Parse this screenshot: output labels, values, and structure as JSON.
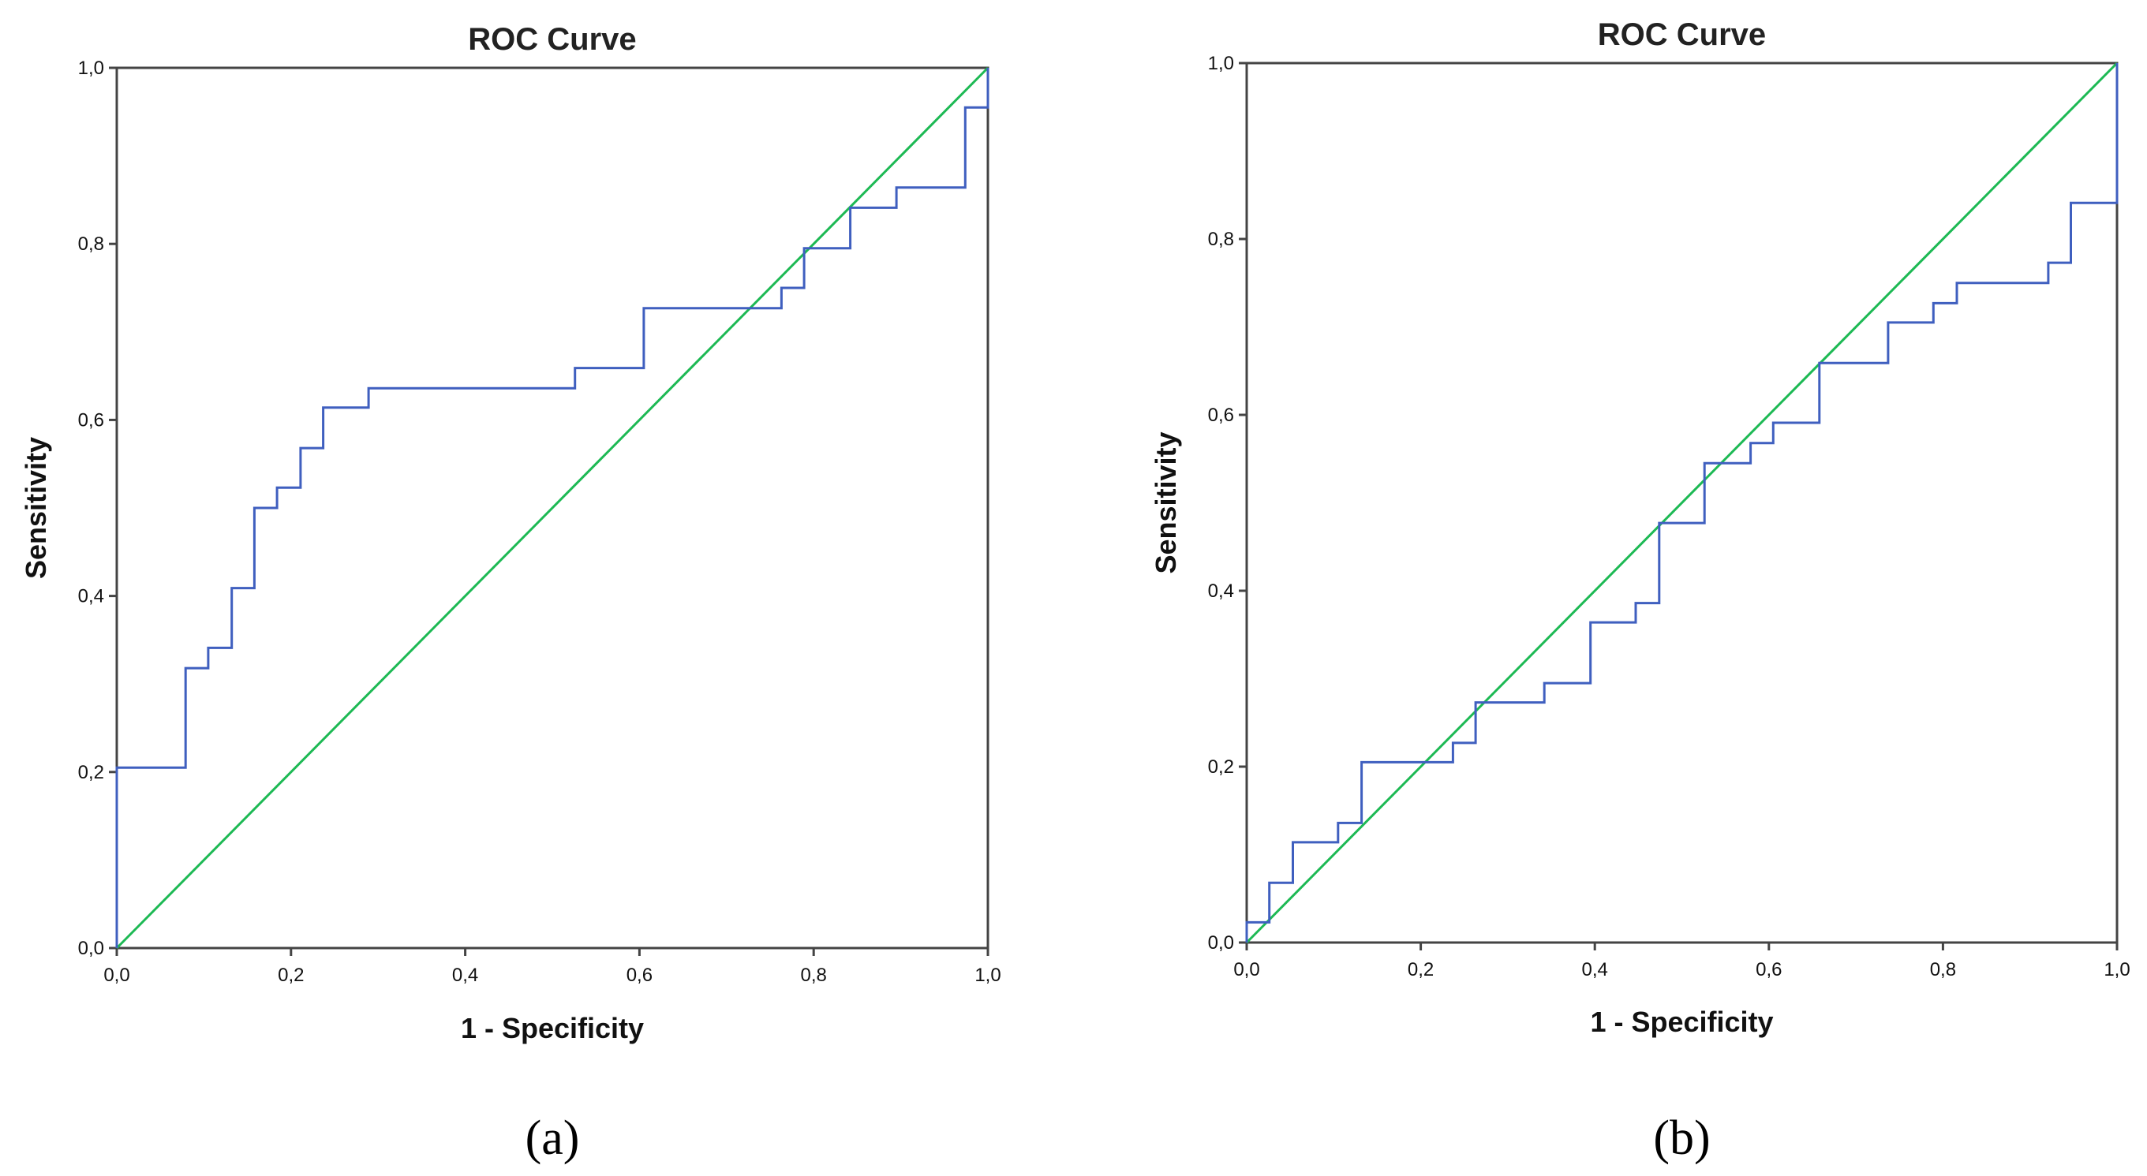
{
  "chart_data": [
    {
      "type": "line",
      "panel_label": "(a)",
      "title": "ROC Curve",
      "xlabel": "1 - Specificity",
      "ylabel": "Sensitivity",
      "xlim": [
        0,
        1
      ],
      "ylim": [
        0,
        1
      ],
      "xticks": [
        "0,0",
        "0,2",
        "0,4",
        "0,6",
        "0,8",
        "1,0"
      ],
      "yticks": [
        "0,0",
        "0,2",
        "0,4",
        "0,6",
        "0,8",
        "1,0"
      ],
      "grid": false,
      "colors": {
        "roc": "#3f5fbf",
        "reference": "#1db954"
      },
      "series": [
        {
          "role": "roc",
          "step": true,
          "x": [
            0.0,
            0.0,
            0.079,
            0.079,
            0.105,
            0.105,
            0.132,
            0.132,
            0.158,
            0.158,
            0.184,
            0.184,
            0.211,
            0.211,
            0.237,
            0.237,
            0.289,
            0.289,
            0.526,
            0.526,
            0.605,
            0.605,
            0.763,
            0.763,
            0.789,
            0.789,
            0.842,
            0.842,
            0.895,
            0.895,
            0.974,
            0.974,
            1.0,
            1.0
          ],
          "y": [
            0.0,
            0.205,
            0.205,
            0.318,
            0.318,
            0.341,
            0.341,
            0.409,
            0.409,
            0.5,
            0.5,
            0.523,
            0.523,
            0.568,
            0.568,
            0.614,
            0.614,
            0.636,
            0.636,
            0.659,
            0.659,
            0.727,
            0.727,
            0.75,
            0.75,
            0.795,
            0.795,
            0.841,
            0.841,
            0.864,
            0.864,
            0.955,
            0.955,
            1.0
          ]
        },
        {
          "role": "reference",
          "x": [
            0,
            1
          ],
          "y": [
            0,
            1
          ]
        }
      ]
    },
    {
      "type": "line",
      "panel_label": "(b)",
      "title": "ROC Curve",
      "xlabel": "1 - Specificity",
      "ylabel": "Sensitivity",
      "xlim": [
        0,
        1
      ],
      "ylim": [
        0,
        1
      ],
      "xticks": [
        "0,0",
        "0,2",
        "0,4",
        "0,6",
        "0,8",
        "1,0"
      ],
      "yticks": [
        "0,0",
        "0,2",
        "0,4",
        "0,6",
        "0,8",
        "1,0"
      ],
      "grid": false,
      "colors": {
        "roc": "#3f5fbf",
        "reference": "#1db954"
      },
      "series": [
        {
          "role": "roc",
          "step": true,
          "x": [
            0.0,
            0.0,
            0.026,
            0.026,
            0.053,
            0.053,
            0.105,
            0.105,
            0.132,
            0.132,
            0.237,
            0.237,
            0.263,
            0.263,
            0.342,
            0.342,
            0.395,
            0.395,
            0.447,
            0.447,
            0.474,
            0.474,
            0.526,
            0.526,
            0.579,
            0.579,
            0.605,
            0.605,
            0.658,
            0.658,
            0.737,
            0.737,
            0.789,
            0.789,
            0.816,
            0.816,
            0.921,
            0.921,
            0.947,
            0.947,
            1.0,
            1.0
          ],
          "y": [
            0.0,
            0.023,
            0.023,
            0.068,
            0.068,
            0.114,
            0.114,
            0.136,
            0.136,
            0.205,
            0.205,
            0.227,
            0.227,
            0.273,
            0.273,
            0.295,
            0.295,
            0.364,
            0.364,
            0.386,
            0.386,
            0.477,
            0.477,
            0.545,
            0.545,
            0.568,
            0.568,
            0.591,
            0.591,
            0.659,
            0.659,
            0.705,
            0.705,
            0.727,
            0.727,
            0.75,
            0.75,
            0.773,
            0.773,
            0.841,
            0.841,
            1.0
          ]
        },
        {
          "role": "reference",
          "x": [
            0,
            1
          ],
          "y": [
            0,
            1
          ]
        }
      ]
    }
  ]
}
